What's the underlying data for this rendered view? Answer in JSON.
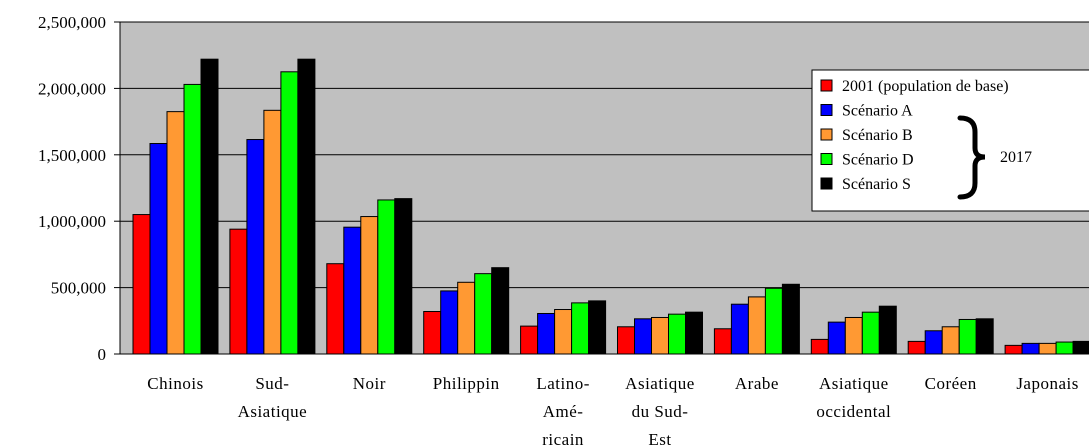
{
  "chart_data": {
    "type": "bar",
    "title": "",
    "xlabel": "",
    "ylabel": "",
    "ylim": [
      0,
      2500000
    ],
    "y_ticks": [
      "0",
      "500,000",
      "1,000,000",
      "1,500,000",
      "2,000,000",
      "2,500,000"
    ],
    "grid": true,
    "legend_position": "right",
    "legend_brace_label": "2017",
    "categories": [
      [
        "Chinois"
      ],
      [
        "Sud-",
        "Asiatique"
      ],
      [
        "Noir"
      ],
      [
        "Philippin"
      ],
      [
        "Latino-",
        "Amé-",
        "ricain"
      ],
      [
        "Asiatique",
        "du Sud-",
        "Est"
      ],
      [
        "Arabe"
      ],
      [
        "Asiatique",
        "occidental"
      ],
      [
        "Coréen"
      ],
      [
        "Japonais"
      ]
    ],
    "series": [
      {
        "name": "2001 (population de base)",
        "color": "#ff0000",
        "values": [
          1050000,
          940000,
          680000,
          320000,
          210000,
          205000,
          190000,
          110000,
          95000,
          65000
        ]
      },
      {
        "name": "Scénario A",
        "color": "#0000ff",
        "values": [
          1585000,
          1615000,
          955000,
          475000,
          305000,
          265000,
          375000,
          240000,
          175000,
          80000
        ]
      },
      {
        "name": "Scénario B",
        "color": "#ff9933",
        "values": [
          1825000,
          1835000,
          1035000,
          540000,
          335000,
          275000,
          430000,
          275000,
          205000,
          80000
        ]
      },
      {
        "name": "Scénario D",
        "color": "#00ff00",
        "values": [
          2030000,
          2125000,
          1160000,
          605000,
          385000,
          300000,
          495000,
          315000,
          260000,
          90000
        ]
      },
      {
        "name": "Scénario S",
        "color": "#000000",
        "values": [
          2220000,
          2220000,
          1170000,
          650000,
          400000,
          315000,
          525000,
          360000,
          265000,
          95000
        ]
      }
    ]
  }
}
